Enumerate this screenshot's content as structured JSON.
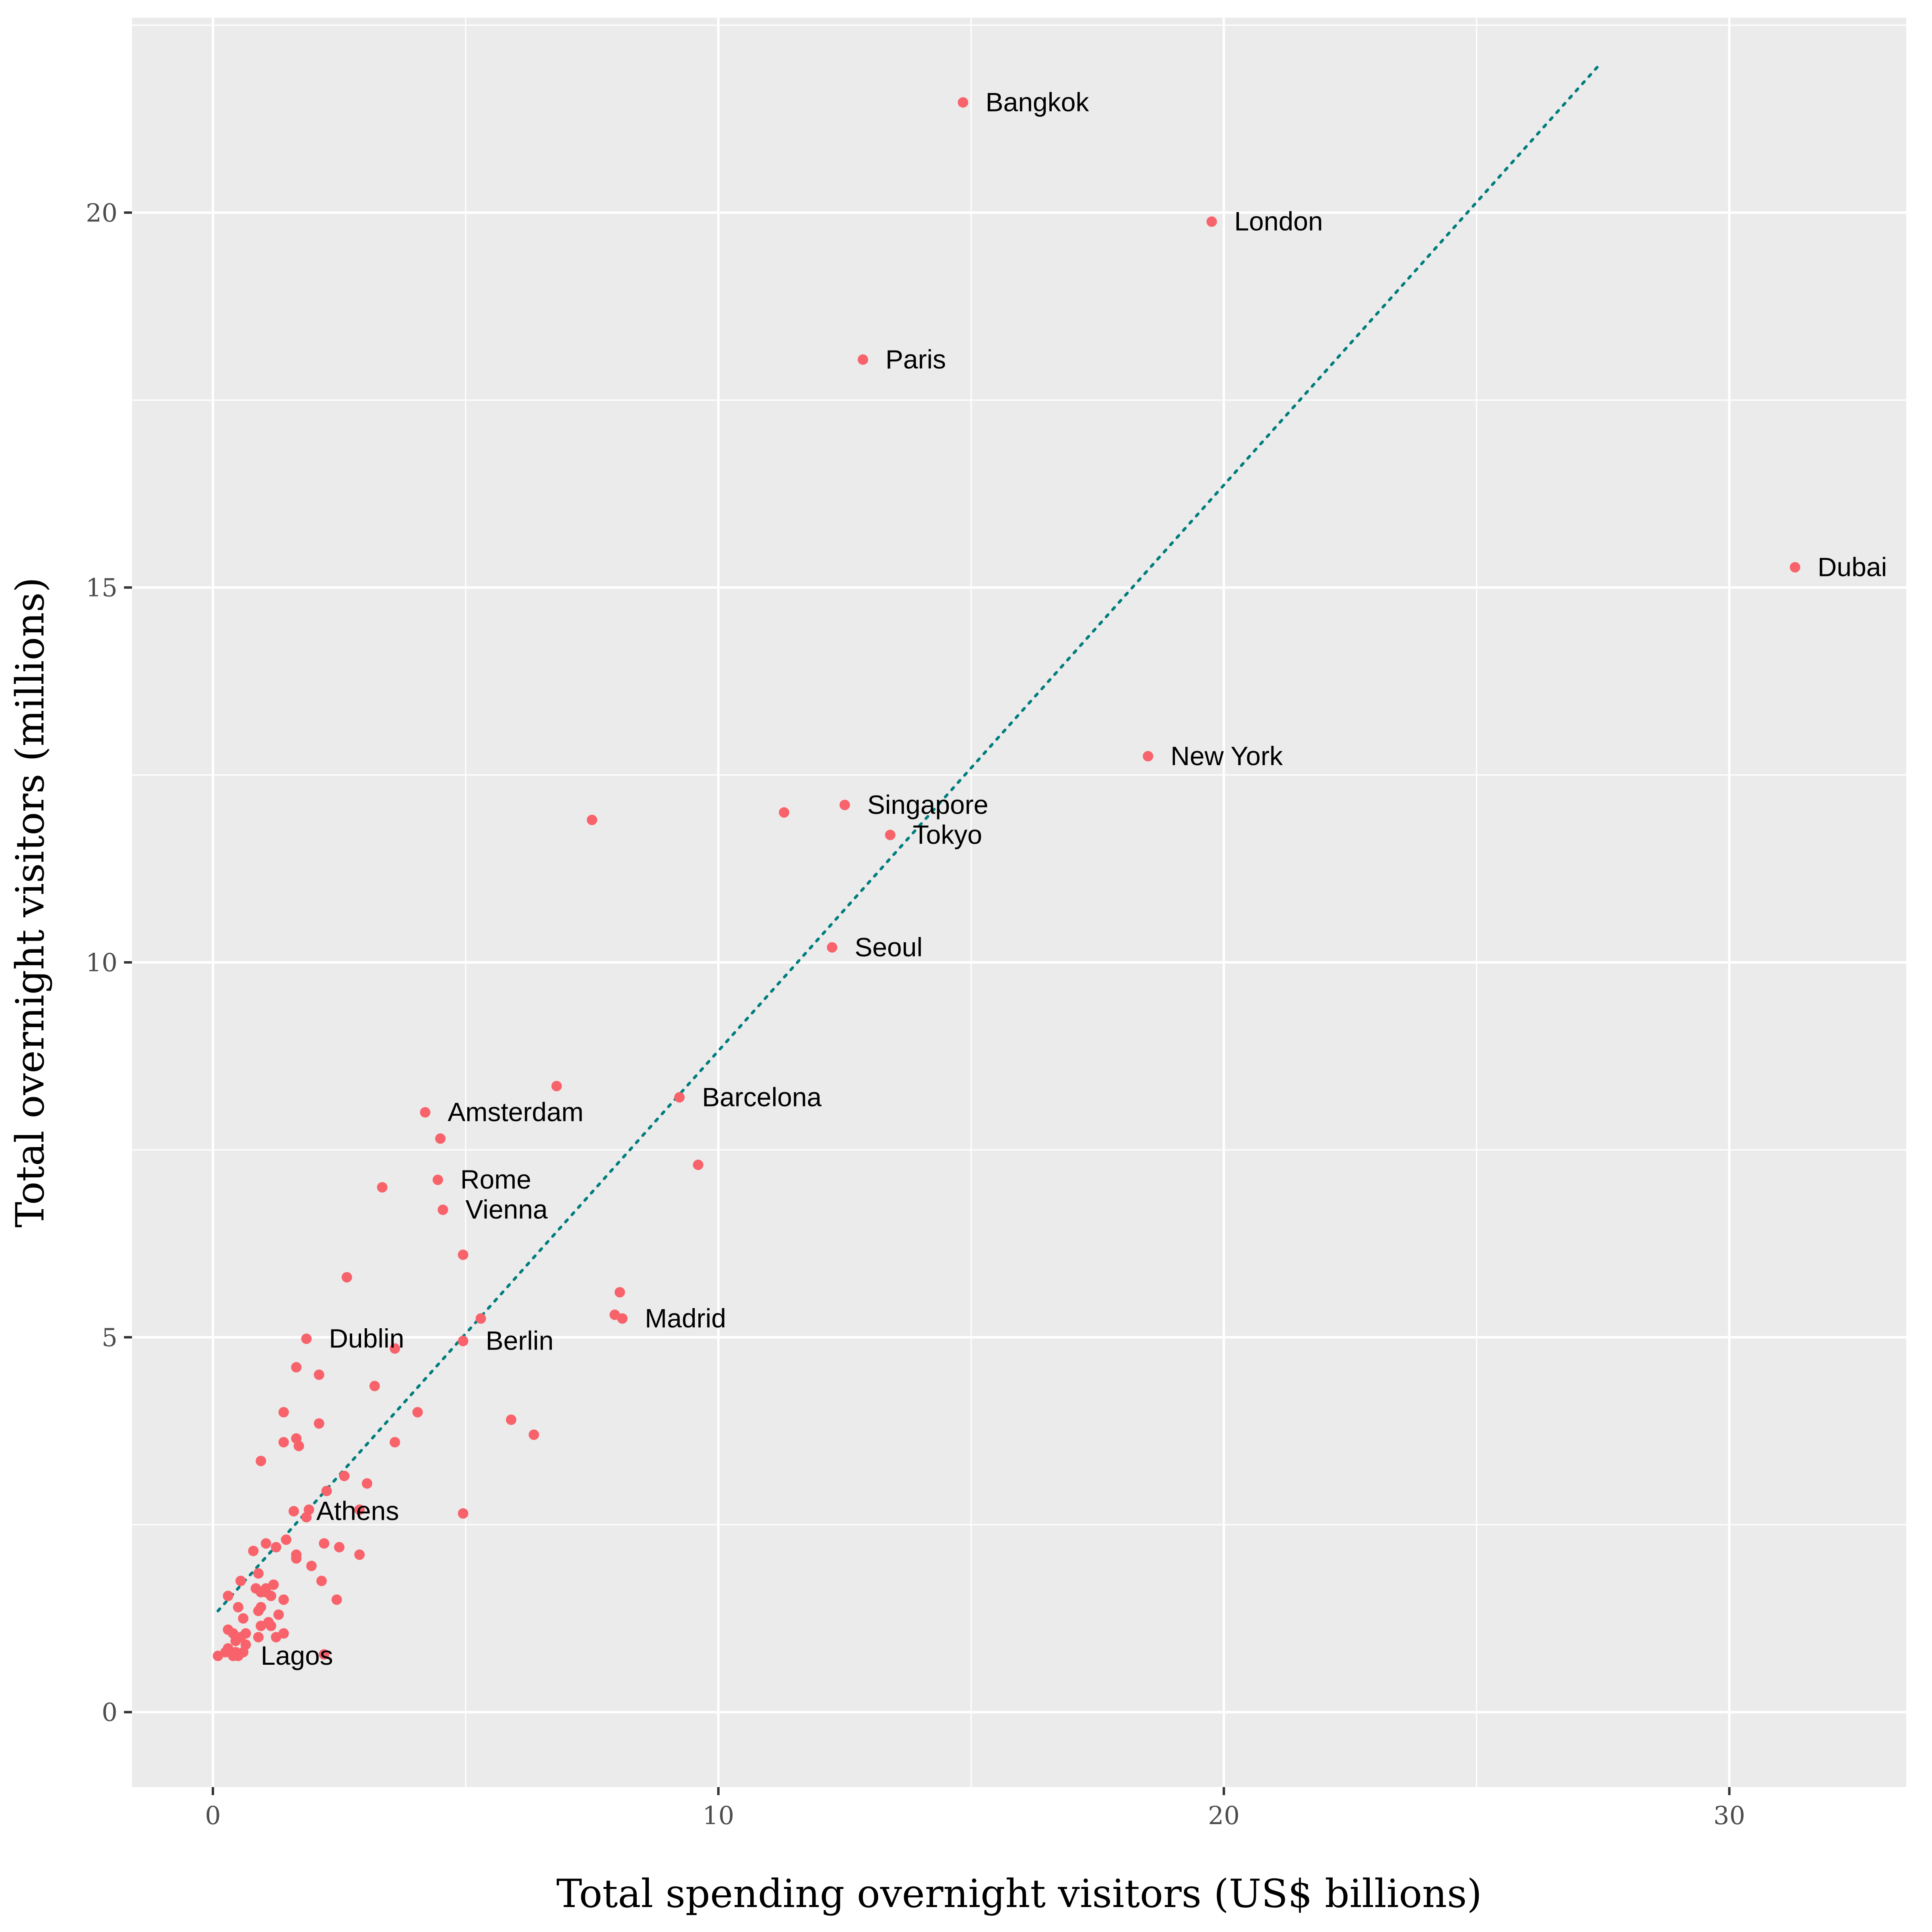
{
  "chart_data": {
    "type": "scatter",
    "xlabel": "Total spending overnight visitors (US$ billions)",
    "ylabel": "Total overnight visitors (millions)",
    "xlim": [
      -1.6,
      33.5
    ],
    "ylim": [
      -1.0,
      22.6
    ],
    "x_ticks": [
      0,
      10,
      20,
      30
    ],
    "y_ticks": [
      0,
      5,
      10,
      15,
      20
    ],
    "grid": true,
    "legend": "none",
    "colors": {
      "panel": "#EBEBEB",
      "grid": "#FFFFFF",
      "point": "#F8636B",
      "trend": "#007D7D",
      "axis_text": "#4D4D4D"
    },
    "trend_line": {
      "style": "dotted",
      "x": [
        0.1,
        27.4
      ],
      "y": [
        1.35,
        21.95
      ]
    },
    "labels": [
      {
        "text": "Bangkok",
        "x": 14.84,
        "y": 21.47
      },
      {
        "text": "London",
        "x": 19.76,
        "y": 19.88
      },
      {
        "text": "Paris",
        "x": 12.86,
        "y": 18.04
      },
      {
        "text": "Dubai",
        "x": 31.3,
        "y": 15.27
      },
      {
        "text": "New York",
        "x": 18.5,
        "y": 12.75
      },
      {
        "text": "Singapore",
        "x": 12.5,
        "y": 12.1
      },
      {
        "text": "Tokyo",
        "x": 13.4,
        "y": 11.7
      },
      {
        "text": "Seoul",
        "x": 12.25,
        "y": 10.2
      },
      {
        "text": "Barcelona",
        "x": 9.23,
        "y": 8.2
      },
      {
        "text": "Amsterdam",
        "x": 4.2,
        "y": 8.0
      },
      {
        "text": "Rome",
        "x": 4.45,
        "y": 7.1
      },
      {
        "text": "Vienna",
        "x": 4.55,
        "y": 6.7
      },
      {
        "text": "Madrid",
        "x": 8.1,
        "y": 5.25
      },
      {
        "text": "Berlin",
        "x": 4.95,
        "y": 4.95
      },
      {
        "text": "Dublin",
        "x": 1.85,
        "y": 4.98
      },
      {
        "text": "Athens",
        "x": 1.6,
        "y": 2.68
      },
      {
        "text": "Lagos",
        "x": 0.5,
        "y": 0.75
      }
    ],
    "points": [
      [
        14.84,
        21.47
      ],
      [
        19.76,
        19.88
      ],
      [
        12.86,
        18.04
      ],
      [
        31.3,
        15.27
      ],
      [
        18.5,
        12.75
      ],
      [
        12.5,
        12.1
      ],
      [
        11.3,
        12.0
      ],
      [
        7.5,
        11.9
      ],
      [
        13.4,
        11.7
      ],
      [
        12.25,
        10.2
      ],
      [
        6.8,
        8.35
      ],
      [
        9.23,
        8.2
      ],
      [
        4.2,
        8.0
      ],
      [
        4.5,
        7.65
      ],
      [
        9.6,
        7.3
      ],
      [
        4.45,
        7.1
      ],
      [
        3.35,
        7.0
      ],
      [
        4.55,
        6.7
      ],
      [
        4.95,
        6.1
      ],
      [
        2.65,
        5.8
      ],
      [
        8.05,
        5.6
      ],
      [
        7.95,
        5.3
      ],
      [
        8.1,
        5.25
      ],
      [
        5.3,
        5.25
      ],
      [
        4.95,
        4.95
      ],
      [
        1.85,
        4.98
      ],
      [
        3.6,
        4.85
      ],
      [
        1.65,
        4.6
      ],
      [
        2.1,
        4.5
      ],
      [
        3.2,
        4.35
      ],
      [
        1.4,
        4.0
      ],
      [
        4.05,
        4.0
      ],
      [
        5.9,
        3.9
      ],
      [
        2.1,
        3.85
      ],
      [
        6.35,
        3.7
      ],
      [
        1.65,
        3.65
      ],
      [
        1.4,
        3.6
      ],
      [
        1.7,
        3.55
      ],
      [
        3.6,
        3.6
      ],
      [
        0.95,
        3.35
      ],
      [
        2.6,
        3.15
      ],
      [
        3.05,
        3.05
      ],
      [
        2.25,
        2.95
      ],
      [
        1.6,
        2.68
      ],
      [
        1.9,
        2.7
      ],
      [
        2.9,
        2.7
      ],
      [
        4.95,
        2.65
      ],
      [
        1.85,
        2.6
      ],
      [
        1.45,
        2.3
      ],
      [
        2.2,
        2.25
      ],
      [
        1.05,
        2.25
      ],
      [
        1.25,
        2.2
      ],
      [
        2.5,
        2.2
      ],
      [
        0.8,
        2.15
      ],
      [
        2.9,
        2.1
      ],
      [
        1.65,
        2.1
      ],
      [
        1.65,
        2.05
      ],
      [
        1.95,
        1.95
      ],
      [
        0.9,
        1.85
      ],
      [
        2.15,
        1.75
      ],
      [
        0.55,
        1.75
      ],
      [
        1.2,
        1.7
      ],
      [
        1.05,
        1.65
      ],
      [
        0.85,
        1.65
      ],
      [
        0.95,
        1.6
      ],
      [
        1.05,
        1.6
      ],
      [
        1.15,
        1.55
      ],
      [
        0.3,
        1.55
      ],
      [
        2.45,
        1.5
      ],
      [
        1.4,
        1.5
      ],
      [
        0.5,
        1.4
      ],
      [
        0.95,
        1.4
      ],
      [
        0.9,
        1.35
      ],
      [
        1.3,
        1.3
      ],
      [
        0.6,
        1.25
      ],
      [
        1.1,
        1.2
      ],
      [
        0.95,
        1.15
      ],
      [
        1.15,
        1.15
      ],
      [
        0.3,
        1.1
      ],
      [
        0.4,
        1.05
      ],
      [
        0.65,
        1.05
      ],
      [
        1.4,
        1.05
      ],
      [
        0.55,
        1.0
      ],
      [
        0.9,
        1.0
      ],
      [
        1.25,
        1.0
      ],
      [
        0.45,
        0.95
      ],
      [
        0.65,
        0.9
      ],
      [
        0.3,
        0.85
      ],
      [
        0.45,
        0.8
      ],
      [
        0.25,
        0.8
      ],
      [
        0.6,
        0.8
      ],
      [
        0.1,
        0.75
      ],
      [
        0.4,
        0.75
      ],
      [
        0.5,
        0.75
      ],
      [
        2.2,
        0.77
      ]
    ]
  }
}
